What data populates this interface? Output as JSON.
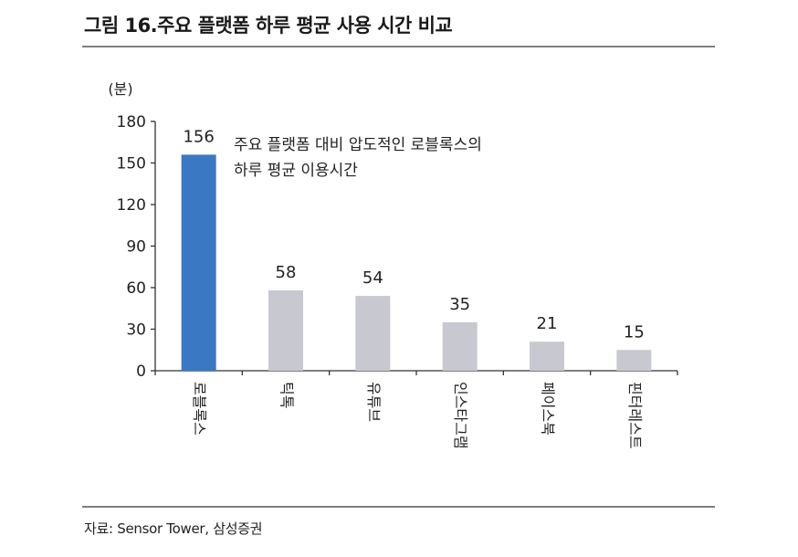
{
  "header": {
    "title": "그림 16.주요 플랫폼 하루 평균 사용 시간 비교"
  },
  "footer": {
    "source": "자료: Sensor Tower, 삼성증권"
  },
  "colors": {
    "highlight": "#3a78c3",
    "bar": "#c8c9d0",
    "axis": "#333333",
    "rule": "#7f7f7f"
  },
  "chart_data": {
    "type": "bar",
    "categories": [
      "로블록스",
      "틱톡",
      "유튜브",
      "인스타그램",
      "페이스북",
      "핀터레스트"
    ],
    "values": [
      156,
      58,
      54,
      35,
      21,
      15
    ],
    "highlight_index": 0,
    "ylabel": "(분)",
    "ylim": [
      0,
      180
    ],
    "yticks": [
      0,
      30,
      60,
      90,
      120,
      150,
      180
    ],
    "grid": false,
    "annotation": [
      "주요 플랫폼 대비 압도적인 로블록스의",
      "하루 평균 이용시간"
    ]
  }
}
